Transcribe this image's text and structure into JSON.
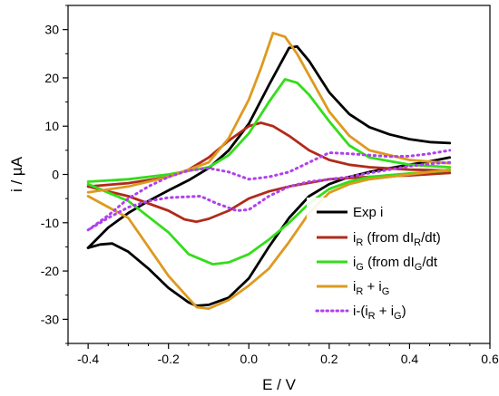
{
  "chart_data": {
    "type": "line",
    "xlabel": "E / V",
    "ylabel": "i / µA",
    "xlim": [
      -0.45,
      0.6
    ],
    "ylim": [
      -35,
      35
    ],
    "xticks": [
      -0.4,
      -0.2,
      0.0,
      0.2,
      0.4,
      0.6
    ],
    "xtick_labels": [
      "-0.4",
      "-0.2",
      "0.0",
      "0.2",
      "0.4",
      "0.6"
    ],
    "yticks": [
      -30,
      -20,
      -10,
      0,
      10,
      20,
      30
    ],
    "ytick_labels": [
      "-30",
      "-20",
      "-10",
      "0",
      "10",
      "20",
      "30"
    ],
    "grid": false,
    "legend_position": "bottom-right",
    "series": [
      {
        "name": "Exp i",
        "color": "#000000",
        "style": "solid",
        "forward": [
          [
            -0.4,
            -15.2
          ],
          [
            -0.35,
            -11
          ],
          [
            -0.3,
            -8
          ],
          [
            -0.25,
            -5.5
          ],
          [
            -0.2,
            -3.3
          ],
          [
            -0.15,
            -1.2
          ],
          [
            -0.1,
            1.3
          ],
          [
            -0.05,
            5
          ],
          [
            0.0,
            10.5
          ],
          [
            0.05,
            18.5
          ],
          [
            0.1,
            26.2
          ],
          [
            0.12,
            26.5
          ],
          [
            0.15,
            23.5
          ],
          [
            0.2,
            17
          ],
          [
            0.25,
            12.5
          ],
          [
            0.3,
            9.8
          ],
          [
            0.35,
            8.3
          ],
          [
            0.4,
            7.3
          ],
          [
            0.45,
            6.7
          ],
          [
            0.5,
            6.5
          ]
        ],
        "reverse": [
          [
            0.5,
            3.5
          ],
          [
            0.45,
            2.7
          ],
          [
            0.4,
            2
          ],
          [
            0.35,
            1.3
          ],
          [
            0.3,
            0.5
          ],
          [
            0.25,
            -0.5
          ],
          [
            0.2,
            -2
          ],
          [
            0.15,
            -4.5
          ],
          [
            0.1,
            -9
          ],
          [
            0.05,
            -15
          ],
          [
            0.0,
            -21.5
          ],
          [
            -0.05,
            -25.5
          ],
          [
            -0.1,
            -27
          ],
          [
            -0.13,
            -27.2
          ],
          [
            -0.15,
            -26.5
          ],
          [
            -0.2,
            -23.5
          ],
          [
            -0.25,
            -19.5
          ],
          [
            -0.3,
            -16
          ],
          [
            -0.34,
            -14.3
          ],
          [
            -0.37,
            -14.5
          ],
          [
            -0.4,
            -15.2
          ]
        ]
      },
      {
        "name": "iR (from dIR/dt)",
        "color": "#b22a1a",
        "style": "solid",
        "forward": [
          [
            -0.4,
            -2.5
          ],
          [
            -0.3,
            -1.8
          ],
          [
            -0.2,
            -0.5
          ],
          [
            -0.15,
            1
          ],
          [
            -0.1,
            3.5
          ],
          [
            -0.05,
            7
          ],
          [
            0.0,
            10
          ],
          [
            0.03,
            10.7
          ],
          [
            0.06,
            10
          ],
          [
            0.1,
            8
          ],
          [
            0.15,
            5
          ],
          [
            0.2,
            3
          ],
          [
            0.25,
            2
          ],
          [
            0.3,
            1.5
          ],
          [
            0.4,
            1
          ],
          [
            0.5,
            0.8
          ]
        ],
        "reverse": [
          [
            0.5,
            0.3
          ],
          [
            0.4,
            -0.2
          ],
          [
            0.3,
            -0.5
          ],
          [
            0.2,
            -1
          ],
          [
            0.1,
            -2.5
          ],
          [
            0.05,
            -3.5
          ],
          [
            0.0,
            -5
          ],
          [
            -0.05,
            -7.5
          ],
          [
            -0.1,
            -9.2
          ],
          [
            -0.13,
            -9.8
          ],
          [
            -0.16,
            -9.3
          ],
          [
            -0.2,
            -7.5
          ],
          [
            -0.3,
            -4.5
          ],
          [
            -0.4,
            -2.5
          ]
        ]
      },
      {
        "name": "iG (from dIG/dt",
        "color": "#33dd1a",
        "style": "solid",
        "forward": [
          [
            -0.4,
            -1.5
          ],
          [
            -0.3,
            -1
          ],
          [
            -0.2,
            0
          ],
          [
            -0.1,
            1.5
          ],
          [
            -0.05,
            4
          ],
          [
            0.0,
            8.5
          ],
          [
            0.05,
            15
          ],
          [
            0.09,
            19.7
          ],
          [
            0.12,
            19
          ],
          [
            0.15,
            16.5
          ],
          [
            0.2,
            11
          ],
          [
            0.25,
            6
          ],
          [
            0.3,
            3.5
          ],
          [
            0.4,
            2
          ],
          [
            0.5,
            1.5
          ]
        ],
        "reverse": [
          [
            0.5,
            0.8
          ],
          [
            0.4,
            0.2
          ],
          [
            0.3,
            -0.5
          ],
          [
            0.25,
            -1.5
          ],
          [
            0.2,
            -3
          ],
          [
            0.15,
            -6
          ],
          [
            0.1,
            -10
          ],
          [
            0.05,
            -13.5
          ],
          [
            0.0,
            -16.5
          ],
          [
            -0.05,
            -18.2
          ],
          [
            -0.09,
            -18.6
          ],
          [
            -0.15,
            -16.5
          ],
          [
            -0.2,
            -12
          ],
          [
            -0.3,
            -5.5
          ],
          [
            -0.4,
            -2
          ]
        ]
      },
      {
        "name": "iR + iG",
        "color": "#dd9a1f",
        "style": "solid",
        "forward": [
          [
            -0.4,
            -3.7
          ],
          [
            -0.3,
            -2.5
          ],
          [
            -0.2,
            -0.5
          ],
          [
            -0.1,
            2.5
          ],
          [
            -0.05,
            7.5
          ],
          [
            0.0,
            15.5
          ],
          [
            0.03,
            22
          ],
          [
            0.06,
            29.3
          ],
          [
            0.09,
            28.5
          ],
          [
            0.12,
            25
          ],
          [
            0.15,
            20.5
          ],
          [
            0.2,
            13
          ],
          [
            0.25,
            8
          ],
          [
            0.3,
            5
          ],
          [
            0.4,
            3
          ],
          [
            0.5,
            2.3
          ]
        ],
        "reverse": [
          [
            0.5,
            1
          ],
          [
            0.4,
            0
          ],
          [
            0.3,
            -1
          ],
          [
            0.25,
            -2
          ],
          [
            0.2,
            -3.8
          ],
          [
            0.15,
            -8
          ],
          [
            0.1,
            -14
          ],
          [
            0.05,
            -19.5
          ],
          [
            0.0,
            -23
          ],
          [
            -0.05,
            -26
          ],
          [
            -0.1,
            -27.8
          ],
          [
            -0.13,
            -27.5
          ],
          [
            -0.2,
            -21
          ],
          [
            -0.3,
            -9
          ],
          [
            -0.4,
            -4.5
          ]
        ]
      },
      {
        "name": "i-(iR + iG)",
        "color": "#b040ee",
        "style": "dotted",
        "forward": [
          [
            -0.4,
            -11.5
          ],
          [
            -0.35,
            -8.5
          ],
          [
            -0.3,
            -5
          ],
          [
            -0.25,
            -2.5
          ],
          [
            -0.2,
            -0.5
          ],
          [
            -0.15,
            0.8
          ],
          [
            -0.1,
            1.3
          ],
          [
            -0.05,
            0.5
          ],
          [
            0.0,
            -1
          ],
          [
            0.05,
            -0.5
          ],
          [
            0.1,
            0.5
          ],
          [
            0.15,
            2.5
          ],
          [
            0.2,
            4.5
          ],
          [
            0.25,
            4.3
          ],
          [
            0.3,
            4
          ],
          [
            0.35,
            3.7
          ],
          [
            0.4,
            3.8
          ],
          [
            0.45,
            4.3
          ],
          [
            0.5,
            5
          ]
        ],
        "reverse": [
          [
            0.5,
            2.5
          ],
          [
            0.45,
            2.2
          ],
          [
            0.4,
            1.7
          ],
          [
            0.35,
            1
          ],
          [
            0.3,
            0.3
          ],
          [
            0.25,
            -0.5
          ],
          [
            0.2,
            -1
          ],
          [
            0.15,
            -1.5
          ],
          [
            0.1,
            -2.5
          ],
          [
            0.05,
            -4.5
          ],
          [
            0.0,
            -7.3
          ],
          [
            -0.03,
            -7.5
          ],
          [
            -0.08,
            -6
          ],
          [
            -0.12,
            -4.5
          ],
          [
            -0.2,
            -4.8
          ],
          [
            -0.25,
            -5.5
          ],
          [
            -0.3,
            -6.8
          ],
          [
            -0.35,
            -9
          ],
          [
            -0.4,
            -11.5
          ]
        ]
      }
    ],
    "legend": [
      {
        "key": "exp",
        "main": "Exp i",
        "subs": []
      },
      {
        "key": "ir",
        "main": "",
        "subs": []
      },
      {
        "key": "ig",
        "main": "",
        "subs": []
      },
      {
        "key": "sum",
        "main": "",
        "subs": []
      },
      {
        "key": "diff",
        "main": "",
        "subs": []
      }
    ]
  }
}
